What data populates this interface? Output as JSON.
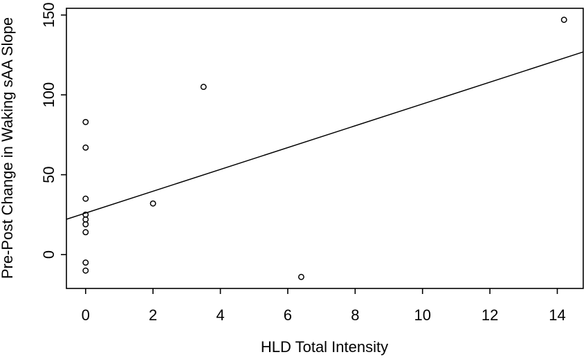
{
  "chart_data": {
    "type": "scatter",
    "title": "",
    "xlabel": "HLD Total Intensity",
    "ylabel": "Pre-Post Change in Waking sAA Slope",
    "xlim": [
      -0.57,
      14.77
    ],
    "ylim": [
      -21.2,
      154.2
    ],
    "x_ticks": [
      0,
      2,
      4,
      6,
      8,
      10,
      12,
      14
    ],
    "y_ticks": [
      0,
      50,
      100,
      150
    ],
    "points": [
      {
        "x": 0,
        "y": 83
      },
      {
        "x": 0,
        "y": 67
      },
      {
        "x": 0,
        "y": 35
      },
      {
        "x": 0,
        "y": 25
      },
      {
        "x": 0,
        "y": 22
      },
      {
        "x": 0,
        "y": 19
      },
      {
        "x": 0,
        "y": 14
      },
      {
        "x": 0,
        "y": -5
      },
      {
        "x": 0,
        "y": -10
      },
      {
        "x": 2,
        "y": 32
      },
      {
        "x": 3.5,
        "y": 105
      },
      {
        "x": 6.4,
        "y": -14
      },
      {
        "x": 14.2,
        "y": 147
      }
    ],
    "regression_line": {
      "intercept": 26.0,
      "slope": 6.83
    },
    "grid": false,
    "legend": null,
    "marker": "open-circle",
    "stroke_color": "#000000",
    "background_color": "#ffffff"
  }
}
